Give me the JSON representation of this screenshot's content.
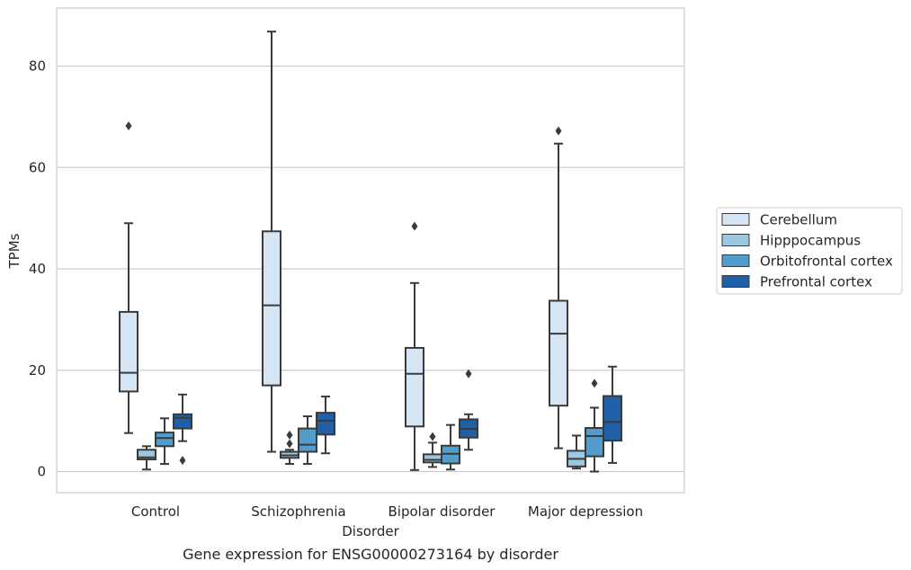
{
  "chart_data": {
    "type": "boxplot",
    "caption": "Gene expression for ENSG00000273164 by disorder",
    "xlabel": "Disorder",
    "ylabel": "TPMs",
    "categories": [
      "Control",
      "Schizophrenia",
      "Bipolar disorder",
      "Major depression"
    ],
    "ylim": [
      -4,
      92
    ],
    "yticks": [
      0,
      20,
      40,
      60,
      80
    ],
    "grid": true,
    "legend": {
      "placement": "right",
      "entries": [
        "Cerebellum",
        "Hipppocampus",
        "Orbitofrontal cortex",
        "Prefrontal cortex"
      ]
    },
    "colors": {
      "Cerebellum": "#d6e5f4",
      "Hipppocampus": "#9ac8e0",
      "Orbitofrontal cortex": "#529dcc",
      "Prefrontal cortex": "#2060a8",
      "edge": "#3a3a3a",
      "grid": "#cccccc"
    },
    "series": [
      {
        "name": "Cerebellum",
        "boxes": [
          {
            "whislo": 7.6,
            "q1": 15.8,
            "med": 19.5,
            "q3": 31.5,
            "whishi": 49.0,
            "fliers": [
              68.2
            ]
          },
          {
            "whislo": 3.9,
            "q1": 17.0,
            "med": 32.8,
            "q3": 47.4,
            "whishi": 86.8,
            "fliers": []
          },
          {
            "whislo": 0.3,
            "q1": 8.9,
            "med": 19.3,
            "q3": 24.4,
            "whishi": 37.2,
            "fliers": [
              48.4
            ]
          },
          {
            "whislo": 4.6,
            "q1": 13.0,
            "med": 27.2,
            "q3": 33.7,
            "whishi": 64.7,
            "fliers": [
              67.2
            ]
          }
        ]
      },
      {
        "name": "Hipppocampus",
        "boxes": [
          {
            "whislo": 0.4,
            "q1": 2.4,
            "med": 2.8,
            "q3": 4.3,
            "whishi": 5.0,
            "fliers": []
          },
          {
            "whislo": 1.5,
            "q1": 2.7,
            "med": 3.2,
            "q3": 3.9,
            "whishi": 4.3,
            "fliers": [
              5.5,
              7.2
            ]
          },
          {
            "whislo": 0.9,
            "q1": 1.8,
            "med": 2.3,
            "q3": 3.4,
            "whishi": 5.7,
            "fliers": [
              6.9
            ]
          },
          {
            "whislo": 0.6,
            "q1": 1.0,
            "med": 2.5,
            "q3": 4.1,
            "whishi": 7.1,
            "fliers": []
          }
        ]
      },
      {
        "name": "Orbitofrontal cortex",
        "boxes": [
          {
            "whislo": 1.5,
            "q1": 5.0,
            "med": 6.6,
            "q3": 7.7,
            "whishi": 10.5,
            "fliers": []
          },
          {
            "whislo": 1.5,
            "q1": 3.9,
            "med": 5.3,
            "q3": 8.5,
            "whishi": 10.9,
            "fliers": []
          },
          {
            "whislo": 0.4,
            "q1": 1.6,
            "med": 3.5,
            "q3": 5.1,
            "whishi": 9.2,
            "fliers": []
          },
          {
            "whislo": 0.0,
            "q1": 3.0,
            "med": 7.0,
            "q3": 8.6,
            "whishi": 12.6,
            "fliers": [
              17.4
            ]
          }
        ]
      },
      {
        "name": "Prefrontal cortex",
        "boxes": [
          {
            "whislo": 6.0,
            "q1": 8.5,
            "med": 10.6,
            "q3": 11.3,
            "whishi": 15.2,
            "fliers": [
              2.2
            ]
          },
          {
            "whislo": 3.6,
            "q1": 7.3,
            "med": 10.0,
            "q3": 11.6,
            "whishi": 14.8,
            "fliers": []
          },
          {
            "whislo": 4.3,
            "q1": 6.7,
            "med": 8.4,
            "q3": 10.3,
            "whishi": 11.3,
            "fliers": [
              19.3
            ]
          },
          {
            "whislo": 1.7,
            "q1": 6.1,
            "med": 9.8,
            "q3": 14.9,
            "whishi": 20.7,
            "fliers": []
          }
        ]
      }
    ]
  }
}
